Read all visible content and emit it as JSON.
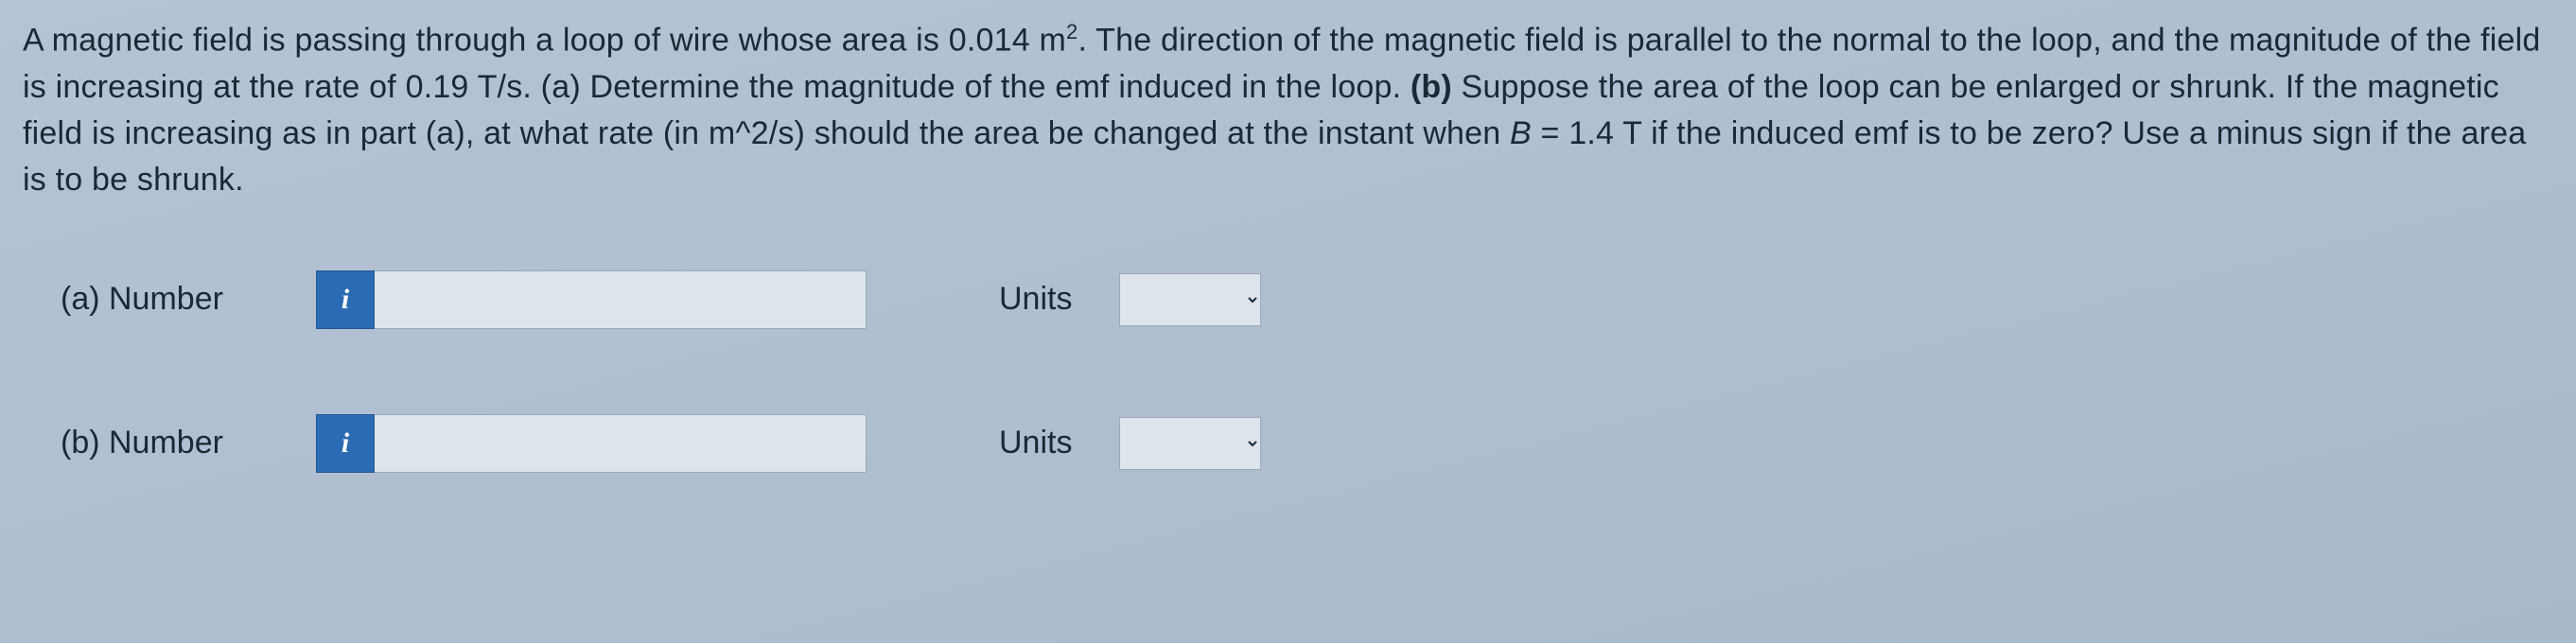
{
  "problem": {
    "text_html": "A magnetic field is passing through a loop of wire whose area is 0.014 m<sup>2</sup>. The direction of the magnetic field is parallel to the normal to the loop, and the magnitude of the field is increasing at the rate of 0.19 T/s. (a) Determine the magnitude of the emf induced in the loop. <b>(b)</b> Suppose the area of the loop can be enlarged or shrunk. If the magnetic field is increasing as in part (a), at what rate (in m^2/s) should the area be changed at the instant when <i>B</i> = 1.4 T if the induced emf is to be zero? Use a minus sign if the area is to be shrunk."
  },
  "parts": [
    {
      "key": "a",
      "label": "(a)   Number",
      "info_icon": "i",
      "number_value": "",
      "number_placeholder": "",
      "units_label": "Units",
      "units_value": ""
    },
    {
      "key": "b",
      "label": "(b)   Number",
      "info_icon": "i",
      "number_value": "",
      "number_placeholder": "",
      "units_label": "Units",
      "units_value": ""
    }
  ],
  "colors": {
    "bg_top": "#b5c3d4",
    "bg_bottom": "#a9b9cc",
    "text": "#1a2838",
    "info_bg": "#2a6bb3",
    "info_fg": "#ffffff",
    "input_bg": "#dde4ec",
    "input_border": "#9aa8b8"
  }
}
